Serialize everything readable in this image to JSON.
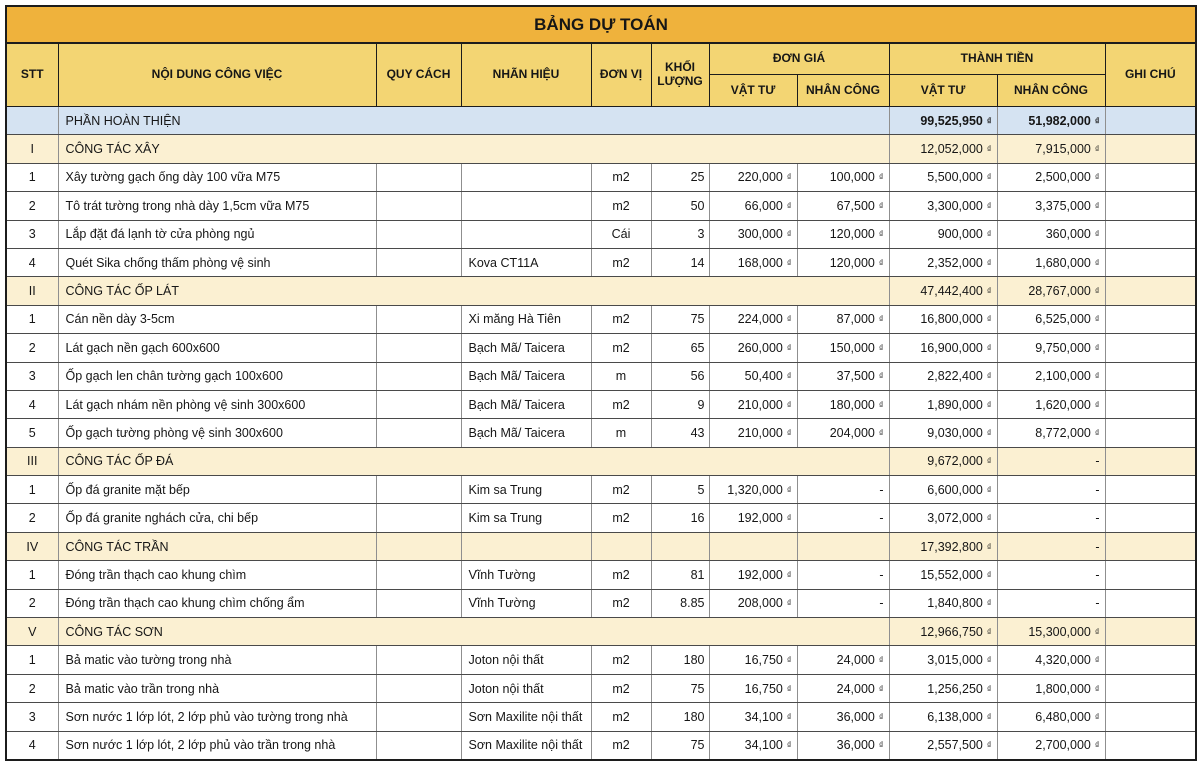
{
  "title": "BẢNG DỰ TOÁN",
  "currency": "₫",
  "colors": {
    "title_bg": "#efb23c",
    "header_bg": "#f3d573",
    "section_bg": "#fbf0d2",
    "summary_bg": "#d5e3f2",
    "border_dark": "#1c1c1c"
  },
  "header": {
    "stt": "STT",
    "noi_dung": "NỘI DUNG CÔNG VIỆC",
    "quy_cach": "QUY CÁCH",
    "nhan_hieu": "NHÃN HIỆU",
    "don_vi": "ĐƠN VỊ",
    "khoi_luong": "KHỐI LƯỢNG",
    "don_gia": "ĐƠN GIÁ",
    "thanh_tien": "THÀNH TIỀN",
    "vat_tu": "VẬT TƯ",
    "nhan_cong": "NHÂN CÔNG",
    "ghi_chu": "GHI CHÚ"
  },
  "rows": [
    {
      "type": "summary",
      "merged": true,
      "stt": "",
      "name": "PHẦN HOÀN THIỆN",
      "tt_vat_tu": "99,525,950",
      "tt_nhan_cong": "51,982,000",
      "ghi_chu": ""
    },
    {
      "type": "section",
      "merged": true,
      "stt": "I",
      "name": "CÔNG TÁC XÂY",
      "tt_vat_tu": "12,052,000",
      "tt_nhan_cong": "7,915,000",
      "ghi_chu": ""
    },
    {
      "type": "item",
      "merged": false,
      "stt": "1",
      "name": "Xây tường gạch ống dày 100 vữa M75",
      "quy_cach": "",
      "nhan_hieu": "",
      "don_vi": "m2",
      "khoi_luong": "25",
      "dg_vat_tu": "220,000",
      "dg_nhan_cong": "100,000",
      "tt_vat_tu": "5,500,000",
      "tt_nhan_cong": "2,500,000",
      "ghi_chu": ""
    },
    {
      "type": "item",
      "merged": false,
      "stt": "2",
      "name": "Tô trát tường trong nhà dày 1,5cm vữa M75",
      "quy_cach": "",
      "nhan_hieu": "",
      "don_vi": "m2",
      "khoi_luong": "50",
      "dg_vat_tu": "66,000",
      "dg_nhan_cong": "67,500",
      "tt_vat_tu": "3,300,000",
      "tt_nhan_cong": "3,375,000",
      "ghi_chu": ""
    },
    {
      "type": "item",
      "merged": false,
      "stt": "3",
      "name": "Lắp đặt đá lạnh tờ cửa phòng ngủ",
      "quy_cach": "",
      "nhan_hieu": "",
      "don_vi": "Cái",
      "khoi_luong": "3",
      "dg_vat_tu": "300,000",
      "dg_nhan_cong": "120,000",
      "tt_vat_tu": "900,000",
      "tt_nhan_cong": "360,000",
      "ghi_chu": ""
    },
    {
      "type": "item",
      "merged": false,
      "stt": "4",
      "name": "Quét Sika chống thấm phòng vệ sinh",
      "quy_cach": "",
      "nhan_hieu": "Kova CT11A",
      "don_vi": "m2",
      "khoi_luong": "14",
      "dg_vat_tu": "168,000",
      "dg_nhan_cong": "120,000",
      "tt_vat_tu": "2,352,000",
      "tt_nhan_cong": "1,680,000",
      "ghi_chu": ""
    },
    {
      "type": "section",
      "merged": true,
      "stt": "II",
      "name": "CÔNG TÁC ỐP LÁT",
      "tt_vat_tu": "47,442,400",
      "tt_nhan_cong": "28,767,000",
      "ghi_chu": ""
    },
    {
      "type": "item",
      "merged": false,
      "stt": "1",
      "name": "Cán nền dày 3-5cm",
      "quy_cach": "",
      "nhan_hieu": "Xi măng Hà Tiên",
      "don_vi": "m2",
      "khoi_luong": "75",
      "dg_vat_tu": "224,000",
      "dg_nhan_cong": "87,000",
      "tt_vat_tu": "16,800,000",
      "tt_nhan_cong": "6,525,000",
      "ghi_chu": ""
    },
    {
      "type": "item",
      "merged": false,
      "stt": "2",
      "name": "Lát gạch nền gạch 600x600",
      "quy_cach": "",
      "nhan_hieu": "Bạch Mã/ Taicera",
      "don_vi": "m2",
      "khoi_luong": "65",
      "dg_vat_tu": "260,000",
      "dg_nhan_cong": "150,000",
      "tt_vat_tu": "16,900,000",
      "tt_nhan_cong": "9,750,000",
      "ghi_chu": ""
    },
    {
      "type": "item",
      "merged": false,
      "stt": "3",
      "name": "Ốp gạch len chân tường gạch 100x600",
      "quy_cach": "",
      "nhan_hieu": "Bạch Mã/ Taicera",
      "don_vi": "m",
      "khoi_luong": "56",
      "dg_vat_tu": "50,400",
      "dg_nhan_cong": "37,500",
      "tt_vat_tu": "2,822,400",
      "tt_nhan_cong": "2,100,000",
      "ghi_chu": ""
    },
    {
      "type": "item",
      "merged": false,
      "stt": "4",
      "name": "Lát gạch nhám nền phòng vệ sinh 300x600",
      "quy_cach": "",
      "nhan_hieu": "Bạch Mã/ Taicera",
      "don_vi": "m2",
      "khoi_luong": "9",
      "dg_vat_tu": "210,000",
      "dg_nhan_cong": "180,000",
      "tt_vat_tu": "1,890,000",
      "tt_nhan_cong": "1,620,000",
      "ghi_chu": ""
    },
    {
      "type": "item",
      "merged": false,
      "stt": "5",
      "name": "Ốp gạch tường phòng vệ sinh 300x600",
      "quy_cach": "",
      "nhan_hieu": "Bạch Mã/ Taicera",
      "don_vi": "m",
      "khoi_luong": "43",
      "dg_vat_tu": "210,000",
      "dg_nhan_cong": "204,000",
      "tt_vat_tu": "9,030,000",
      "tt_nhan_cong": "8,772,000",
      "ghi_chu": ""
    },
    {
      "type": "section",
      "merged": true,
      "stt": "III",
      "name": "CÔNG TÁC ỐP ĐÁ",
      "tt_vat_tu": "9,672,000",
      "tt_nhan_cong": "-",
      "ghi_chu": ""
    },
    {
      "type": "item",
      "merged": false,
      "stt": "1",
      "name": "Ốp đá granite mặt bếp",
      "quy_cach": "",
      "nhan_hieu": "Kim sa Trung",
      "don_vi": "m2",
      "khoi_luong": "5",
      "dg_vat_tu": "1,320,000",
      "dg_nhan_cong": "-",
      "tt_vat_tu": "6,600,000",
      "tt_nhan_cong": "-",
      "ghi_chu": ""
    },
    {
      "type": "item",
      "merged": false,
      "stt": "2",
      "name": "Ốp đá granite nghách cửa, chi bếp",
      "quy_cach": "",
      "nhan_hieu": "Kim sa Trung",
      "don_vi": "m2",
      "khoi_luong": "16",
      "dg_vat_tu": "192,000",
      "dg_nhan_cong": "-",
      "tt_vat_tu": "3,072,000",
      "tt_nhan_cong": "-",
      "ghi_chu": ""
    },
    {
      "type": "section",
      "merged": false,
      "stt": "IV",
      "name": "CÔNG TÁC TRẦN",
      "quy_cach": "",
      "nhan_hieu": "",
      "don_vi": "",
      "khoi_luong": "",
      "dg_vat_tu": "",
      "dg_nhan_cong": "",
      "tt_vat_tu": "17,392,800",
      "tt_nhan_cong": "-",
      "ghi_chu": ""
    },
    {
      "type": "item",
      "merged": false,
      "stt": "1",
      "name": "Đóng trần thạch cao khung chìm",
      "quy_cach": "",
      "nhan_hieu": "Vĩnh Tường",
      "don_vi": "m2",
      "khoi_luong": "81",
      "dg_vat_tu": "192,000",
      "dg_nhan_cong": "-",
      "tt_vat_tu": "15,552,000",
      "tt_nhan_cong": "-",
      "ghi_chu": ""
    },
    {
      "type": "item",
      "merged": false,
      "stt": "2",
      "name": "Đóng trần thạch cao khung chìm chống ẩm",
      "quy_cach": "",
      "nhan_hieu": "Vĩnh Tường",
      "don_vi": "m2",
      "khoi_luong": "8.85",
      "dg_vat_tu": "208,000",
      "dg_nhan_cong": "-",
      "tt_vat_tu": "1,840,800",
      "tt_nhan_cong": "-",
      "ghi_chu": ""
    },
    {
      "type": "section",
      "merged": true,
      "stt": "V",
      "name": "CÔNG TÁC SƠN",
      "tt_vat_tu": "12,966,750",
      "tt_nhan_cong": "15,300,000",
      "ghi_chu": ""
    },
    {
      "type": "item",
      "merged": false,
      "stt": "1",
      "name": "Bả matic vào tường trong nhà",
      "quy_cach": "",
      "nhan_hieu": "Joton nội thất",
      "don_vi": "m2",
      "khoi_luong": "180",
      "dg_vat_tu": "16,750",
      "dg_nhan_cong": "24,000",
      "tt_vat_tu": "3,015,000",
      "tt_nhan_cong": "4,320,000",
      "ghi_chu": ""
    },
    {
      "type": "item",
      "merged": false,
      "stt": "2",
      "name": "Bả matic vào trần trong nhà",
      "quy_cach": "",
      "nhan_hieu": "Joton nội thất",
      "don_vi": "m2",
      "khoi_luong": "75",
      "dg_vat_tu": "16,750",
      "dg_nhan_cong": "24,000",
      "tt_vat_tu": "1,256,250",
      "tt_nhan_cong": "1,800,000",
      "ghi_chu": ""
    },
    {
      "type": "item",
      "merged": false,
      "stt": "3",
      "name": "Sơn nước 1 lớp lót, 2 lớp phủ vào tường trong nhà",
      "quy_cach": "",
      "nhan_hieu": "Sơn Maxilite nội thất",
      "don_vi": "m2",
      "khoi_luong": "180",
      "dg_vat_tu": "34,100",
      "dg_nhan_cong": "36,000",
      "tt_vat_tu": "6,138,000",
      "tt_nhan_cong": "6,480,000",
      "ghi_chu": ""
    },
    {
      "type": "item",
      "merged": false,
      "stt": "4",
      "name": "Sơn nước 1 lớp lót, 2 lớp phủ vào trần trong nhà",
      "quy_cach": "",
      "nhan_hieu": "Sơn Maxilite nội thất",
      "don_vi": "m2",
      "khoi_luong": "75",
      "dg_vat_tu": "34,100",
      "dg_nhan_cong": "36,000",
      "tt_vat_tu": "2,557,500",
      "tt_nhan_cong": "2,700,000",
      "ghi_chu": ""
    }
  ]
}
